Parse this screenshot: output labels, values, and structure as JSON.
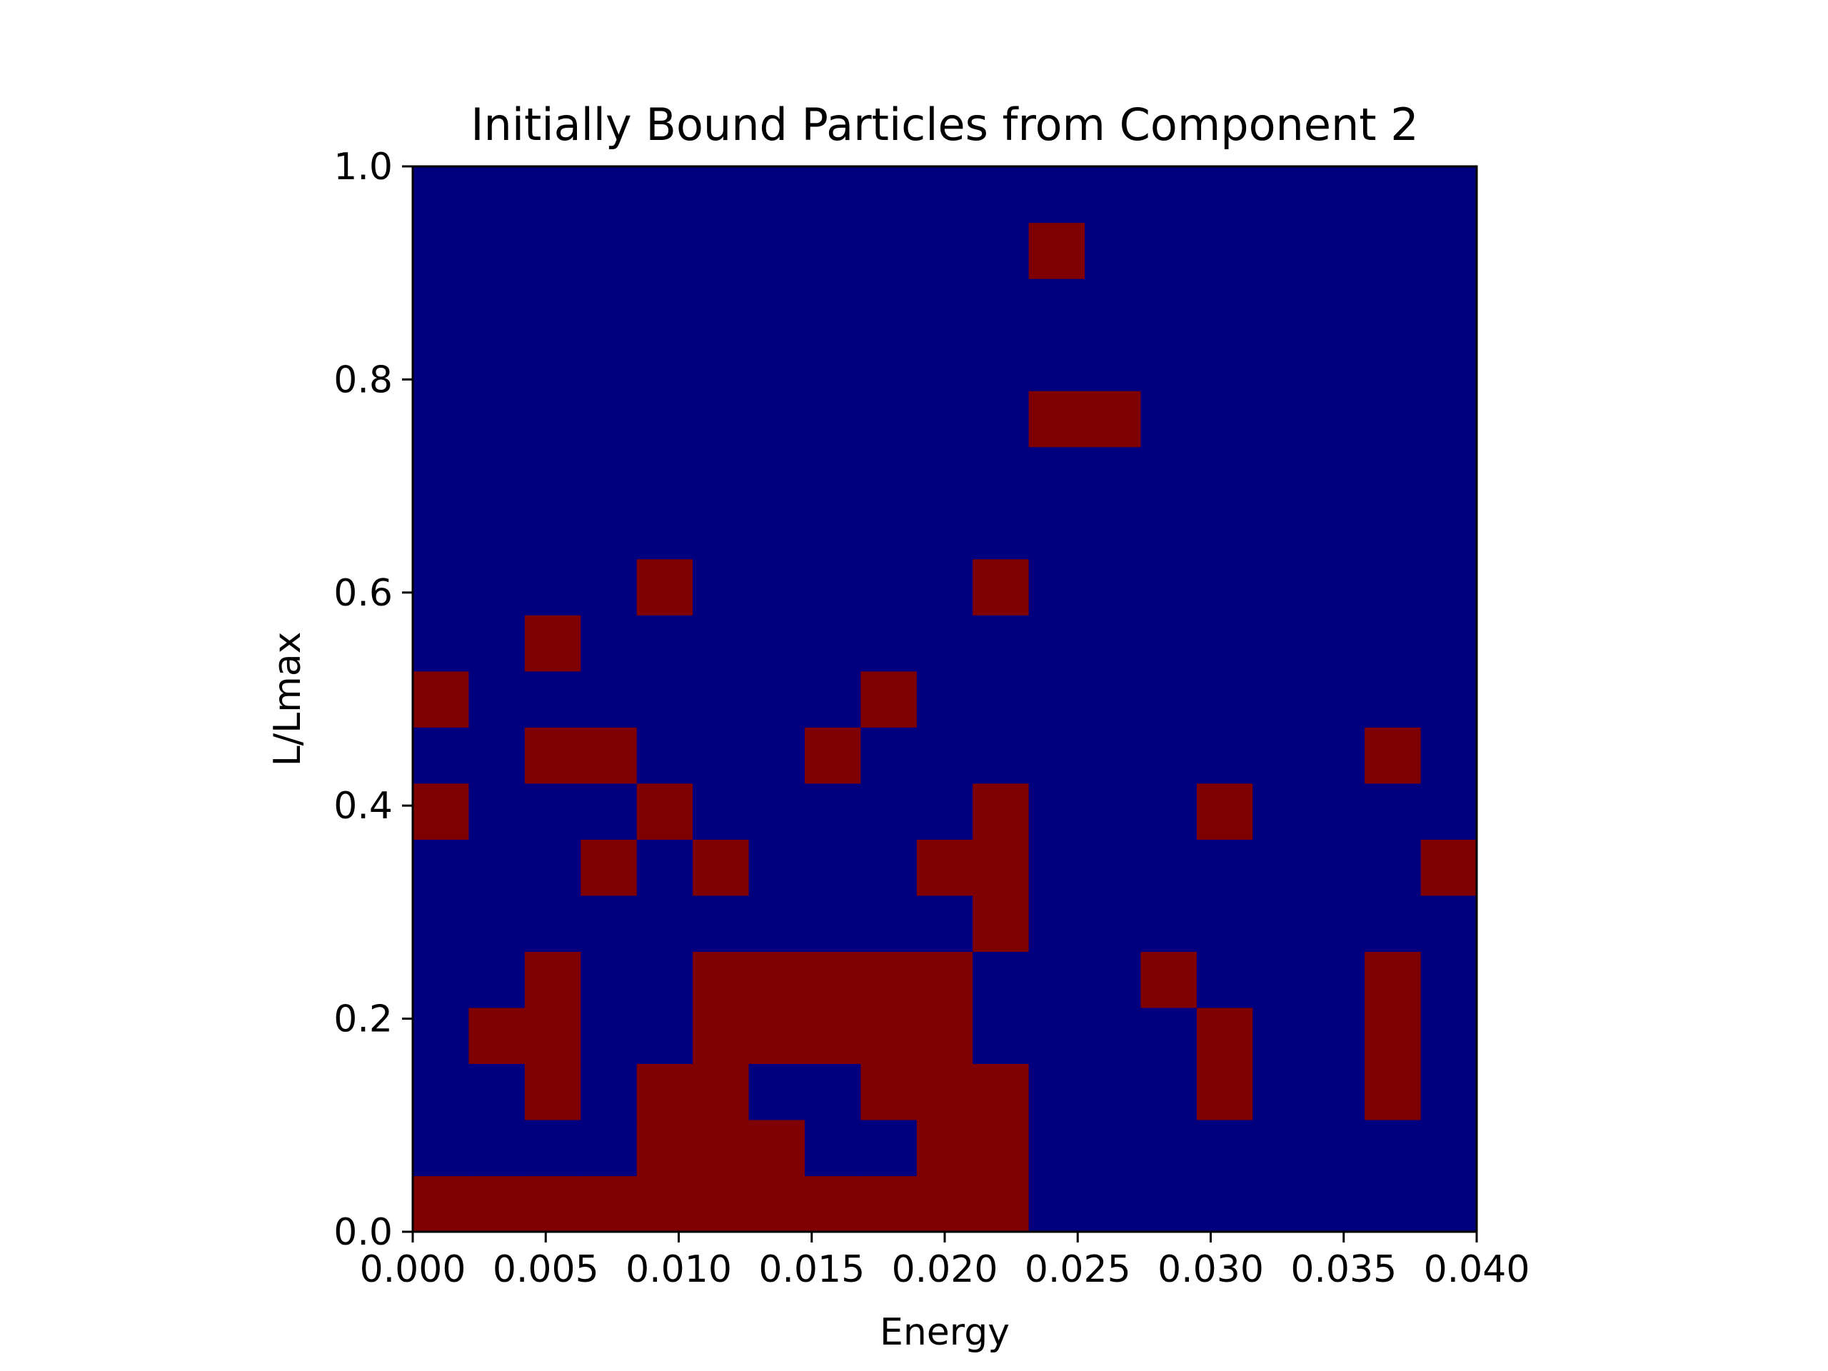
{
  "chart_data": {
    "type": "heatmap",
    "title": "Initially Bound Particles from Component 2",
    "xlabel": "Energy",
    "ylabel": "L/Lmax",
    "xlim": [
      0.0,
      0.04
    ],
    "ylim": [
      0.0,
      1.0
    ],
    "grid": false,
    "legend": "none",
    "xticks": [
      "0.000",
      "0.005",
      "0.010",
      "0.015",
      "0.020",
      "0.025",
      "0.030",
      "0.035",
      "0.040"
    ],
    "yticks": [
      "0.0",
      "0.2",
      "0.4",
      "0.6",
      "0.8",
      "1.0"
    ],
    "x_bins": 19,
    "y_bins": 19,
    "colors": {
      "low": "#00007f",
      "high": "#7f0000"
    },
    "rows_from_bottom": [
      [
        1,
        1,
        1,
        1,
        1,
        1,
        1,
        1,
        1,
        1,
        1,
        0,
        0,
        0,
        0,
        0,
        0,
        0,
        0
      ],
      [
        0,
        0,
        0,
        0,
        1,
        1,
        1,
        0,
        0,
        1,
        1,
        0,
        0,
        0,
        0,
        0,
        0,
        0,
        0
      ],
      [
        0,
        0,
        1,
        0,
        1,
        1,
        0,
        0,
        1,
        1,
        1,
        0,
        0,
        0,
        1,
        0,
        0,
        1,
        0
      ],
      [
        0,
        1,
        1,
        0,
        0,
        1,
        1,
        1,
        1,
        1,
        0,
        0,
        0,
        0,
        1,
        0,
        0,
        1,
        0
      ],
      [
        0,
        0,
        1,
        0,
        0,
        1,
        1,
        1,
        1,
        1,
        0,
        0,
        0,
        1,
        0,
        0,
        0,
        1,
        0
      ],
      [
        0,
        0,
        0,
        0,
        0,
        0,
        0,
        0,
        0,
        0,
        1,
        0,
        0,
        0,
        0,
        0,
        0,
        0,
        0
      ],
      [
        0,
        0,
        0,
        1,
        0,
        1,
        0,
        0,
        0,
        1,
        1,
        0,
        0,
        0,
        0,
        0,
        0,
        0,
        1
      ],
      [
        1,
        0,
        0,
        0,
        1,
        0,
        0,
        0,
        0,
        0,
        1,
        0,
        0,
        0,
        1,
        0,
        0,
        0,
        0
      ],
      [
        0,
        0,
        1,
        1,
        0,
        0,
        0,
        1,
        0,
        0,
        0,
        0,
        0,
        0,
        0,
        0,
        0,
        1,
        0
      ],
      [
        1,
        0,
        0,
        0,
        0,
        0,
        0,
        0,
        1,
        0,
        0,
        0,
        0,
        0,
        0,
        0,
        0,
        0,
        0
      ],
      [
        0,
        0,
        1,
        0,
        0,
        0,
        0,
        0,
        0,
        0,
        0,
        0,
        0,
        0,
        0,
        0,
        0,
        0,
        0
      ],
      [
        0,
        0,
        0,
        0,
        1,
        0,
        0,
        0,
        0,
        0,
        1,
        0,
        0,
        0,
        0,
        0,
        0,
        0,
        0
      ],
      [
        0,
        0,
        0,
        0,
        0,
        0,
        0,
        0,
        0,
        0,
        0,
        0,
        0,
        0,
        0,
        0,
        0,
        0,
        0
      ],
      [
        0,
        0,
        0,
        0,
        0,
        0,
        0,
        0,
        0,
        0,
        0,
        0,
        0,
        0,
        0,
        0,
        0,
        0,
        0
      ],
      [
        0,
        0,
        0,
        0,
        0,
        0,
        0,
        0,
        0,
        0,
        0,
        1,
        1,
        0,
        0,
        0,
        0,
        0,
        0
      ],
      [
        0,
        0,
        0,
        0,
        0,
        0,
        0,
        0,
        0,
        0,
        0,
        0,
        0,
        0,
        0,
        0,
        0,
        0,
        0
      ],
      [
        0,
        0,
        0,
        0,
        0,
        0,
        0,
        0,
        0,
        0,
        0,
        0,
        0,
        0,
        0,
        0,
        0,
        0,
        0
      ],
      [
        0,
        0,
        0,
        0,
        0,
        0,
        0,
        0,
        0,
        0,
        0,
        1,
        0,
        0,
        0,
        0,
        0,
        0,
        0
      ],
      [
        0,
        0,
        0,
        0,
        0,
        0,
        0,
        0,
        0,
        0,
        0,
        0,
        0,
        0,
        0,
        0,
        0,
        0,
        0
      ]
    ]
  }
}
